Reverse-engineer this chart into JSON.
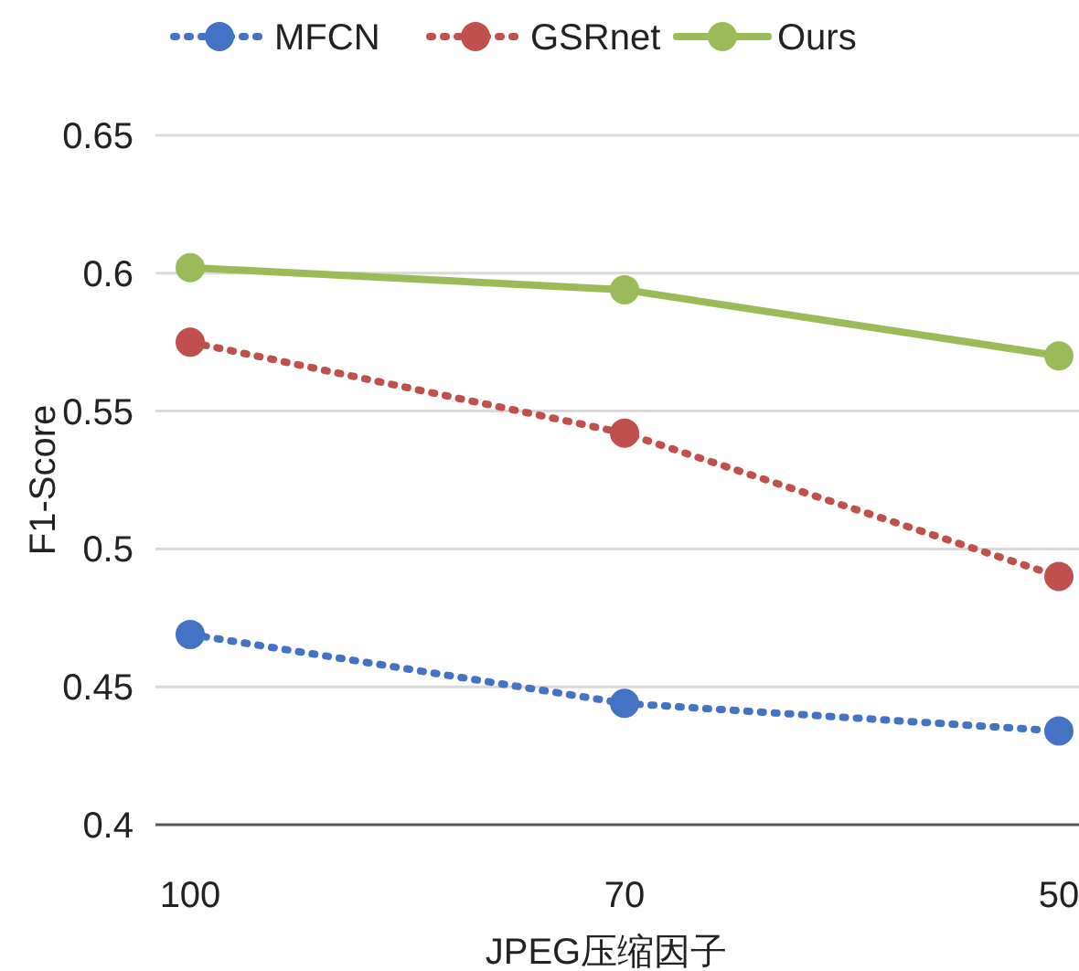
{
  "chart_data": {
    "type": "line",
    "categories": [
      "100",
      "70",
      "50"
    ],
    "series": [
      {
        "name": "MFCN",
        "color": "#4472c4",
        "line_style": "dotted",
        "values": [
          0.469,
          0.444,
          0.434
        ]
      },
      {
        "name": "GSRnet",
        "color": "#c0504d",
        "line_style": "dotted",
        "values": [
          0.575,
          0.542,
          0.49
        ]
      },
      {
        "name": "Ours",
        "color": "#9bbb59",
        "line_style": "solid",
        "values": [
          0.602,
          0.594,
          0.57
        ]
      }
    ],
    "xlabel": "JPEG压缩因子",
    "ylabel": "F1-Score",
    "ylim": [
      0.4,
      0.65
    ],
    "yticks": [
      {
        "value": 0.4,
        "label": "0.4"
      },
      {
        "value": 0.45,
        "label": "0.45"
      },
      {
        "value": 0.5,
        "label": "0.5"
      },
      {
        "value": 0.55,
        "label": "0.55"
      },
      {
        "value": 0.6,
        "label": "0.6"
      },
      {
        "value": 0.65,
        "label": "0.65"
      }
    ],
    "grid": "y",
    "legend": "top",
    "marker": "circle"
  }
}
